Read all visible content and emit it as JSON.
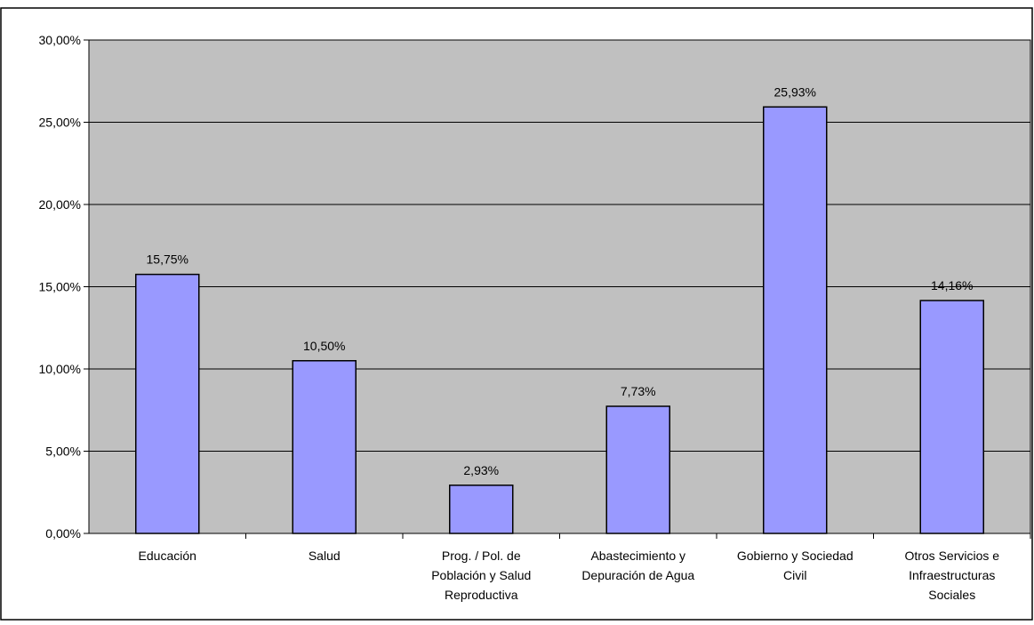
{
  "chart_data": {
    "type": "bar",
    "title": "",
    "xlabel": "",
    "ylabel": "",
    "categories": [
      [
        "Educación"
      ],
      [
        "Salud"
      ],
      [
        "Prog. / Pol. de",
        "Población y Salud",
        "Reproductiva"
      ],
      [
        "Abastecimiento y",
        "Depuración de Agua"
      ],
      [
        "Gobierno y Sociedad",
        "Civil"
      ],
      [
        "Otros Servicios e",
        "Infraestructuras",
        "Sociales"
      ]
    ],
    "values": [
      15.75,
      10.5,
      2.93,
      7.73,
      25.93,
      14.16
    ],
    "data_labels": [
      "15,75%",
      "10,50%",
      "2,93%",
      "7,73%",
      "25,93%",
      "14,16%"
    ],
    "ylim": [
      0,
      30
    ],
    "yticks": [
      0,
      5,
      10,
      15,
      20,
      25,
      30
    ],
    "ytick_labels": [
      "0,00%",
      "5,00%",
      "10,00%",
      "15,00%",
      "20,00%",
      "25,00%",
      "30,00%"
    ],
    "grid": true,
    "legend": "none",
    "colors": {
      "bar_fill": "#9999ff",
      "bar_stroke": "#000000",
      "plot_background": "#c0c0c0",
      "gridline": "#000000",
      "frame": "#000000"
    }
  }
}
